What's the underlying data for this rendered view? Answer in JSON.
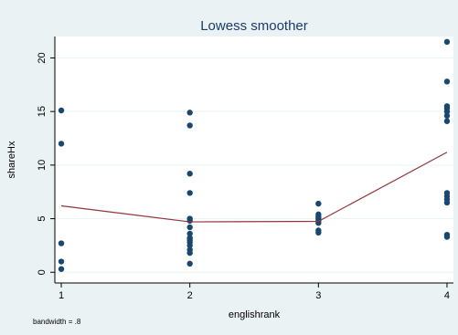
{
  "chart_data": {
    "type": "scatter",
    "title": "Lowess smoother",
    "xlabel": "englishrank",
    "ylabel": "shareHx",
    "note": "bandwidth = .8",
    "xlim": [
      0.95,
      4.05
    ],
    "ylim": [
      -1,
      22
    ],
    "xticks": [
      1,
      2,
      3,
      4
    ],
    "yticks": [
      0,
      5,
      10,
      15,
      20
    ],
    "grid": true,
    "colors": {
      "points": "#1a476f",
      "smoother": "#90353b",
      "plot_bg": "#ffffff",
      "grid": "#eaf2f3"
    },
    "points": [
      [
        1,
        15.1
      ],
      [
        1,
        12.0
      ],
      [
        1,
        2.7
      ],
      [
        1,
        1.0
      ],
      [
        1,
        0.3
      ],
      [
        2,
        14.9
      ],
      [
        2,
        13.7
      ],
      [
        2,
        9.2
      ],
      [
        2,
        7.4
      ],
      [
        2,
        5.0
      ],
      [
        2,
        4.8
      ],
      [
        2,
        4.2
      ],
      [
        2,
        3.6
      ],
      [
        2,
        3.2
      ],
      [
        2,
        3.0
      ],
      [
        2,
        2.8
      ],
      [
        2,
        2.5
      ],
      [
        2,
        2.1
      ],
      [
        2,
        1.8
      ],
      [
        2,
        0.8
      ],
      [
        3,
        6.4
      ],
      [
        3,
        5.4
      ],
      [
        3,
        5.2
      ],
      [
        3,
        5.0
      ],
      [
        3,
        4.8
      ],
      [
        3,
        4.6
      ],
      [
        3,
        3.9
      ],
      [
        3,
        3.7
      ],
      [
        4,
        21.5
      ],
      [
        4,
        17.8
      ],
      [
        4,
        15.5
      ],
      [
        4,
        15.3
      ],
      [
        4,
        15.0
      ],
      [
        4,
        14.6
      ],
      [
        4,
        14.1
      ],
      [
        4,
        7.4
      ],
      [
        4,
        7.1
      ],
      [
        4,
        6.8
      ],
      [
        4,
        6.5
      ],
      [
        4,
        3.5
      ],
      [
        4,
        3.3
      ]
    ],
    "smoother": [
      [
        1,
        6.2
      ],
      [
        2,
        4.7
      ],
      [
        3,
        4.75
      ],
      [
        4,
        11.2
      ]
    ]
  }
}
